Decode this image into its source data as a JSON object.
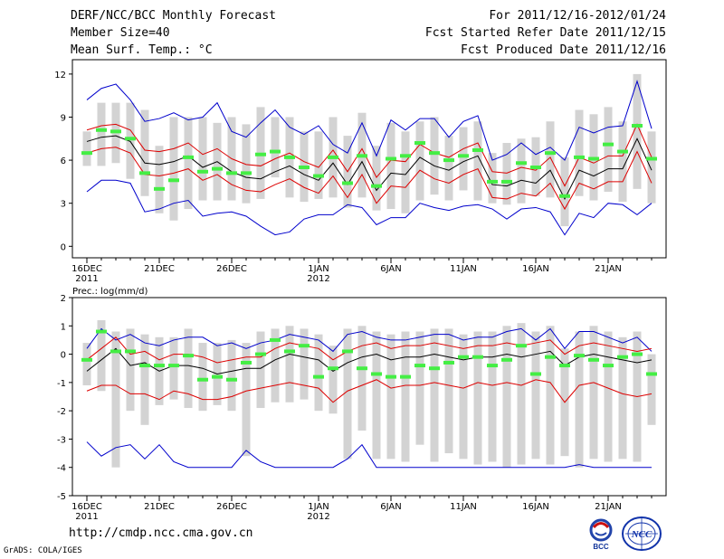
{
  "header": {
    "title": "DERF/NCC/BCC Monthly Forecast",
    "member_size": "Member Size=40",
    "variable": "Mean Surf. Temp.: °C",
    "period": "For 2011/12/16-2012/01/24",
    "started": "Fcst Started Refer Date 2011/12/15",
    "produced": "Fcst Produced Date 2011/12/16"
  },
  "footer": {
    "url": "http://cmdp.ncc.cma.gov.cn",
    "grads": "GrADS: COLA/IGES",
    "logo_left": "BCC",
    "logo_right": "NCC"
  },
  "colors": {
    "box": "#d3d3d3",
    "median": "#44ee44",
    "mean": "#000000",
    "spread": "#dd0000",
    "extreme": "#0000cc"
  },
  "chart_data": [
    {
      "type": "line",
      "title": "Mean Surf. Temp.: °C",
      "xlabel": "",
      "ylabel": "",
      "days": 40,
      "x_ticks": [
        {
          "day": 0,
          "label": "16DEC",
          "sub": "2011"
        },
        {
          "day": 5,
          "label": "21DEC",
          "sub": ""
        },
        {
          "day": 10,
          "label": "26DEC",
          "sub": ""
        },
        {
          "day": 16,
          "label": "1JAN",
          "sub": "2012"
        },
        {
          "day": 21,
          "label": "6JAN",
          "sub": ""
        },
        {
          "day": 26,
          "label": "11JAN",
          "sub": ""
        },
        {
          "day": 31,
          "label": "16JAN",
          "sub": ""
        },
        {
          "day": 36,
          "label": "21JAN",
          "sub": ""
        }
      ],
      "y_ticks": [
        0,
        3,
        6,
        9,
        12
      ],
      "ylim": [
        -0.8,
        13
      ],
      "mean": [
        7.3,
        7.6,
        7.7,
        7.3,
        5.8,
        5.7,
        5.9,
        6.3,
        5.5,
        5.9,
        5.2,
        4.8,
        4.7,
        5.2,
        5.6,
        5.0,
        4.6,
        5.8,
        4.3,
        5.9,
        3.9,
        5.1,
        5.0,
        6.2,
        5.6,
        5.3,
        5.9,
        6.3,
        4.3,
        4.2,
        4.6,
        4.4,
        5.3,
        3.3,
        5.3,
        4.9,
        5.4,
        5.4,
        7.5,
        5.3
      ],
      "upper": [
        8.1,
        8.4,
        8.5,
        8.1,
        6.7,
        6.6,
        6.8,
        7.2,
        6.4,
        6.8,
        6.1,
        5.7,
        5.6,
        6.1,
        6.5,
        5.9,
        5.5,
        6.7,
        5.2,
        6.8,
        4.8,
        6.0,
        5.9,
        7.1,
        6.5,
        6.2,
        6.8,
        7.2,
        5.2,
        5.1,
        5.5,
        5.3,
        6.2,
        4.2,
        6.2,
        5.8,
        6.3,
        6.3,
        8.5,
        6.2
      ],
      "lower": [
        6.5,
        6.8,
        6.9,
        6.5,
        5.0,
        4.9,
        5.1,
        5.4,
        4.6,
        5.0,
        4.3,
        3.9,
        3.8,
        4.3,
        4.7,
        4.1,
        3.7,
        4.9,
        3.4,
        5.0,
        3.0,
        4.2,
        4.1,
        5.3,
        4.7,
        4.4,
        5.0,
        5.4,
        3.4,
        3.3,
        3.7,
        3.5,
        4.4,
        2.6,
        4.4,
        4.0,
        4.5,
        4.5,
        6.6,
        4.4
      ],
      "max": [
        10.2,
        11.0,
        11.3,
        10.2,
        8.7,
        8.9,
        9.3,
        8.8,
        9.0,
        10.0,
        8.0,
        7.6,
        8.6,
        9.5,
        8.3,
        7.8,
        8.4,
        7.1,
        6.5,
        8.6,
        6.3,
        8.8,
        8.1,
        8.9,
        8.9,
        7.6,
        8.7,
        9.1,
        6.0,
        6.4,
        7.2,
        6.4,
        6.9,
        6.0,
        8.3,
        7.9,
        8.3,
        8.4,
        11.5,
        8.2
      ],
      "min": [
        3.8,
        4.6,
        4.6,
        4.4,
        2.4,
        2.6,
        3.0,
        3.2,
        2.1,
        2.3,
        2.4,
        2.1,
        1.4,
        0.8,
        1.0,
        1.9,
        2.2,
        2.2,
        2.9,
        2.7,
        1.5,
        2.0,
        2.0,
        3.0,
        2.7,
        2.5,
        2.8,
        2.9,
        2.6,
        1.9,
        2.6,
        2.7,
        2.4,
        0.8,
        2.3,
        2.0,
        3.0,
        2.9,
        2.2,
        3.0
      ],
      "box_top": [
        8.0,
        10.0,
        10.0,
        10.0,
        9.5,
        7.0,
        9.0,
        9.0,
        9.0,
        8.6,
        9.0,
        8.5,
        9.7,
        9.0,
        9.0,
        8.0,
        8.0,
        9.0,
        7.7,
        9.3,
        7.0,
        8.6,
        8.0,
        8.7,
        9.0,
        7.7,
        8.3,
        8.7,
        6.5,
        7.2,
        7.5,
        7.6,
        8.7,
        6.2,
        9.5,
        9.2,
        9.7,
        8.7,
        12.0,
        8.0
      ],
      "box_bottom": [
        5.6,
        5.6,
        5.8,
        4.7,
        3.5,
        2.3,
        1.8,
        2.6,
        3.2,
        3.2,
        3.2,
        3.0,
        3.3,
        4.8,
        3.4,
        3.1,
        3.3,
        3.4,
        2.7,
        3.4,
        2.5,
        2.6,
        2.3,
        3.2,
        3.6,
        3.2,
        3.9,
        3.2,
        3.0,
        2.9,
        3.0,
        3.5,
        3.4,
        1.4,
        3.5,
        3.2,
        3.8,
        3.1,
        4.0,
        3.0
      ],
      "median": [
        6.5,
        8.1,
        8.0,
        7.5,
        5.1,
        4.0,
        4.6,
        6.2,
        5.2,
        5.4,
        5.1,
        5.1,
        6.4,
        6.6,
        6.2,
        5.5,
        4.9,
        6.2,
        4.4,
        6.3,
        4.2,
        6.1,
        6.3,
        7.2,
        6.5,
        6.0,
        6.3,
        6.7,
        4.5,
        4.5,
        5.8,
        5.5,
        6.5,
        3.5,
        6.2,
        6.1,
        7.1,
        6.6,
        8.4,
        6.1
      ]
    },
    {
      "type": "line",
      "title": "Prec.: log(mm/d)",
      "xlabel": "",
      "ylabel": "",
      "days": 40,
      "x_ticks": [
        {
          "day": 0,
          "label": "16DEC",
          "sub": "2011"
        },
        {
          "day": 5,
          "label": "21DEC",
          "sub": ""
        },
        {
          "day": 10,
          "label": "26DEC",
          "sub": ""
        },
        {
          "day": 16,
          "label": "1JAN",
          "sub": "2012"
        },
        {
          "day": 21,
          "label": "6JAN",
          "sub": ""
        },
        {
          "day": 26,
          "label": "11JAN",
          "sub": ""
        },
        {
          "day": 31,
          "label": "16JAN",
          "sub": ""
        },
        {
          "day": 36,
          "label": "21JAN",
          "sub": ""
        }
      ],
      "y_ticks": [
        -5,
        -4,
        -3,
        -2,
        -1,
        0,
        1,
        2
      ],
      "ylim": [
        -5,
        2
      ],
      "mean": [
        -0.6,
        -0.2,
        0.2,
        -0.4,
        -0.3,
        -0.6,
        -0.4,
        -0.4,
        -0.5,
        -0.7,
        -0.6,
        -0.5,
        -0.5,
        -0.2,
        0.0,
        -0.1,
        -0.2,
        -0.6,
        -0.3,
        -0.1,
        0.0,
        -0.2,
        -0.1,
        -0.1,
        0.0,
        -0.1,
        -0.2,
        -0.1,
        -0.1,
        0.0,
        -0.1,
        0.0,
        0.1,
        -0.4,
        -0.1,
        0.0,
        -0.1,
        -0.2,
        -0.3,
        -0.2
      ],
      "upper": [
        -0.2,
        0.2,
        0.6,
        0.0,
        0.1,
        -0.2,
        0.0,
        0.0,
        -0.1,
        -0.3,
        -0.2,
        -0.1,
        -0.1,
        0.2,
        0.4,
        0.3,
        0.2,
        -0.2,
        0.1,
        0.3,
        0.4,
        0.2,
        0.3,
        0.3,
        0.4,
        0.3,
        0.2,
        0.3,
        0.3,
        0.4,
        0.3,
        0.4,
        0.5,
        0.0,
        0.3,
        0.4,
        0.3,
        0.2,
        0.1,
        0.2
      ],
      "lower": [
        -1.3,
        -1.1,
        -1.1,
        -1.4,
        -1.4,
        -1.6,
        -1.3,
        -1.4,
        -1.6,
        -1.6,
        -1.5,
        -1.3,
        -1.2,
        -1.1,
        -1.0,
        -1.1,
        -1.2,
        -1.7,
        -1.3,
        -1.1,
        -0.9,
        -1.2,
        -1.1,
        -1.1,
        -1.0,
        -1.1,
        -1.2,
        -1.0,
        -1.1,
        -1.0,
        -1.1,
        -0.9,
        -1.0,
        -1.7,
        -1.1,
        -1.0,
        -1.2,
        -1.4,
        -1.5,
        -1.4
      ],
      "max": [
        0.2,
        0.9,
        0.5,
        0.7,
        0.4,
        0.3,
        0.5,
        0.6,
        0.6,
        0.3,
        0.4,
        0.2,
        0.4,
        0.5,
        0.7,
        0.6,
        0.5,
        0.1,
        0.7,
        0.8,
        0.6,
        0.5,
        0.5,
        0.6,
        0.7,
        0.7,
        0.5,
        0.6,
        0.6,
        0.8,
        0.9,
        0.5,
        0.9,
        0.2,
        0.8,
        0.8,
        0.6,
        0.4,
        0.6,
        0.1
      ],
      "min": [
        -3.1,
        -3.6,
        -3.3,
        -3.2,
        -3.7,
        -3.2,
        -3.8,
        -4.0,
        -4.0,
        -4.0,
        -4.0,
        -3.4,
        -3.8,
        -4.0,
        -4.0,
        -4.0,
        -4.0,
        -4.0,
        -3.7,
        -3.2,
        -4.0,
        -4.0,
        -4.0,
        -4.0,
        -4.0,
        -4.0,
        -4.0,
        -4.0,
        -4.0,
        -4.0,
        -4.0,
        -4.0,
        -4.0,
        -4.0,
        -3.9,
        -4.0,
        -4.0,
        -4.0,
        -4.0,
        -4.0
      ],
      "box_top": [
        0.4,
        1.2,
        0.8,
        0.9,
        0.7,
        0.6,
        0.6,
        0.9,
        0.4,
        0.4,
        0.5,
        0.4,
        0.8,
        0.9,
        1.0,
        0.9,
        0.7,
        0.3,
        0.9,
        1.0,
        0.8,
        0.7,
        0.8,
        0.8,
        0.9,
        0.9,
        0.7,
        0.8,
        0.8,
        1.0,
        1.1,
        0.8,
        1.0,
        0.2,
        0.8,
        1.0,
        0.8,
        0.6,
        0.8,
        0.0
      ],
      "box_bottom": [
        -1.1,
        -1.3,
        -4.0,
        -2.0,
        -2.5,
        -1.8,
        -1.6,
        -1.9,
        -2.0,
        -1.8,
        -2.0,
        -3.6,
        -1.9,
        -1.7,
        -1.7,
        -1.6,
        -2.0,
        -2.1,
        -3.7,
        -2.7,
        -3.7,
        -3.7,
        -3.8,
        -3.2,
        -3.8,
        -3.5,
        -3.7,
        -3.9,
        -3.8,
        -4.0,
        -3.9,
        -3.7,
        -3.9,
        -3.6,
        -4.0,
        -3.7,
        -3.8,
        -3.7,
        -3.8,
        -2.5
      ],
      "median": [
        -0.2,
        0.8,
        0.1,
        0.1,
        -0.4,
        -0.4,
        -0.4,
        -0.05,
        -0.9,
        -0.8,
        -0.9,
        -0.3,
        0.0,
        0.5,
        0.1,
        0.3,
        -0.8,
        -0.5,
        0.1,
        -0.5,
        -0.7,
        -0.8,
        -0.8,
        -0.4,
        -0.5,
        -0.3,
        -0.1,
        -0.1,
        -0.4,
        -0.2,
        0.3,
        -0.7,
        -0.1,
        -0.4,
        -0.05,
        -0.2,
        -0.4,
        -0.1,
        0.0,
        -0.7
      ]
    }
  ]
}
